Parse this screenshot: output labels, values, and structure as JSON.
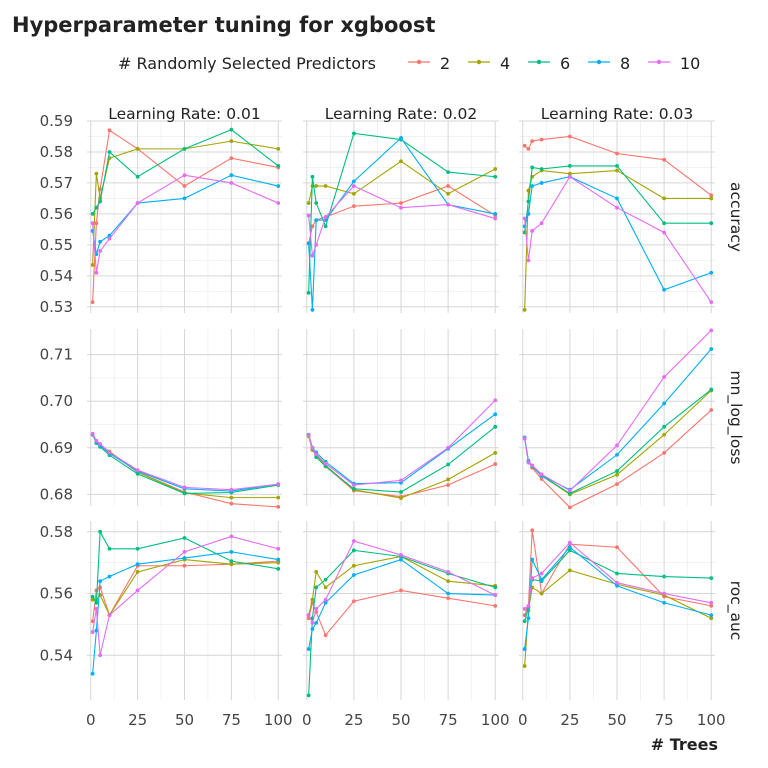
{
  "chart_data": {
    "type": "line",
    "title": "Hyperparameter tuning for xgboost",
    "xlabel": "# Trees",
    "legend": {
      "title": "# Randomly Selected Predictors",
      "entries": [
        "2",
        "4",
        "6",
        "8",
        "10"
      ],
      "position": "top"
    },
    "colors": {
      "2": "#F8766D",
      "4": "#A3A500",
      "6": "#00BF7D",
      "8": "#00B0F6",
      "10": "#E76BF3"
    },
    "x": [
      1,
      3,
      5,
      10,
      25,
      50,
      75,
      100
    ],
    "xlim": [
      -2,
      102
    ],
    "xticks": [
      0,
      25,
      50,
      75,
      100
    ],
    "columns": [
      "Learning Rate: 0.01",
      "Learning Rate: 0.02",
      "Learning Rate: 0.03"
    ],
    "rows": [
      {
        "label": "accuracy",
        "ylim": [
          0.528,
          0.59
        ],
        "yticks": [
          0.53,
          0.54,
          0.55,
          0.56,
          0.57,
          0.58,
          0.59
        ],
        "ytick_labels": [
          "0.53",
          "0.54",
          "0.55",
          "0.56",
          "0.57",
          "0.58",
          "0.59"
        ]
      },
      {
        "label": "mn_log_loss",
        "ylim": [
          0.6775,
          0.7155
        ],
        "yticks": [
          0.68,
          0.69,
          0.7,
          0.71
        ],
        "ytick_labels": [
          "0.68",
          "0.69",
          "0.70",
          "0.71"
        ]
      },
      {
        "label": "roc_auc",
        "ylim": [
          0.5255,
          0.5835
        ],
        "yticks": [
          0.54,
          0.56,
          0.58
        ],
        "ytick_labels": [
          "0.54",
          "0.56",
          "0.58"
        ]
      }
    ],
    "grid": true,
    "panels": [
      {
        "row": "accuracy",
        "col": "Learning Rate: 0.01",
        "series": [
          {
            "name": "2",
            "values": [
              0.5315,
              0.557,
              0.568,
              0.587,
              0.581,
              0.569,
              0.578,
              0.575
            ]
          },
          {
            "name": "4",
            "values": [
              0.5435,
              0.573,
              0.565,
              0.578,
              0.581,
              0.581,
              0.5835,
              0.581
            ]
          },
          {
            "name": "6",
            "values": [
              0.56,
              0.562,
              0.564,
              0.58,
              0.572,
              0.581,
              0.5872,
              0.5755
            ]
          },
          {
            "name": "8",
            "values": [
              0.5545,
              0.547,
              0.551,
              0.553,
              0.5635,
              0.565,
              0.5725,
              0.569
            ]
          },
          {
            "name": "10",
            "values": [
              0.557,
              0.541,
              0.548,
              0.552,
              0.5635,
              0.5725,
              0.57,
              0.5635
            ]
          }
        ]
      },
      {
        "row": "accuracy",
        "col": "Learning Rate: 0.02",
        "series": [
          {
            "name": "2",
            "values": [
              0.5505,
              0.556,
              0.558,
              0.559,
              0.5625,
              0.5635,
              0.569,
              0.5595
            ]
          },
          {
            "name": "4",
            "values": [
              0.5635,
              0.569,
              0.569,
              0.569,
              0.5665,
              0.577,
              0.5665,
              0.5745
            ]
          },
          {
            "name": "6",
            "values": [
              0.5345,
              0.572,
              0.5635,
              0.556,
              0.586,
              0.584,
              0.5735,
              0.572
            ]
          },
          {
            "name": "8",
            "values": [
              0.5505,
              0.529,
              0.558,
              0.558,
              0.5705,
              0.5845,
              0.563,
              0.56
            ]
          },
          {
            "name": "10",
            "values": [
              0.5595,
              0.5465,
              0.55,
              0.559,
              0.569,
              0.562,
              0.563,
              0.5585
            ]
          }
        ]
      },
      {
        "row": "accuracy",
        "col": "Learning Rate: 0.03",
        "series": [
          {
            "name": "2",
            "values": [
              0.582,
              0.581,
              0.5835,
              0.584,
              0.585,
              0.5795,
              0.5775,
              0.566
            ]
          },
          {
            "name": "4",
            "values": [
              0.529,
              0.5675,
              0.572,
              0.574,
              0.573,
              0.574,
              0.565,
              0.565
            ]
          },
          {
            "name": "6",
            "values": [
              0.554,
              0.564,
              0.575,
              0.5745,
              0.5755,
              0.5755,
              0.557,
              0.557
            ]
          },
          {
            "name": "8",
            "values": [
              0.556,
              0.56,
              0.569,
              0.57,
              0.572,
              0.565,
              0.5355,
              0.541
            ]
          },
          {
            "name": "10",
            "values": [
              0.5585,
              0.545,
              0.5545,
              0.557,
              0.572,
              0.562,
              0.554,
              0.5315
            ]
          }
        ]
      },
      {
        "row": "mn_log_loss",
        "col": "Learning Rate: 0.01",
        "series": [
          {
            "name": "2",
            "values": [
              0.6928,
              0.6912,
              0.6905,
              0.689,
              0.6848,
              0.6805,
              0.678,
              0.6773
            ]
          },
          {
            "name": "4",
            "values": [
              0.6928,
              0.6913,
              0.6906,
              0.6892,
              0.6848,
              0.6803,
              0.6793,
              0.6793
            ]
          },
          {
            "name": "6",
            "values": [
              0.6929,
              0.691,
              0.6902,
              0.6884,
              0.6844,
              0.6802,
              0.6804,
              0.682
            ]
          },
          {
            "name": "8",
            "values": [
              0.6929,
              0.6913,
              0.6905,
              0.6888,
              0.685,
              0.6812,
              0.6807,
              0.6822
            ]
          },
          {
            "name": "10",
            "values": [
              0.693,
              0.6915,
              0.6908,
              0.689,
              0.6852,
              0.6815,
              0.681,
              0.6822
            ]
          }
        ]
      },
      {
        "row": "mn_log_loss",
        "col": "Learning Rate: 0.02",
        "series": [
          {
            "name": "2",
            "values": [
              0.6925,
              0.6895,
              0.6885,
              0.686,
              0.6808,
              0.6795,
              0.682,
              0.6865
            ]
          },
          {
            "name": "4",
            "values": [
              0.6925,
              0.6897,
              0.6885,
              0.6862,
              0.681,
              0.6792,
              0.6832,
              0.6889
            ]
          },
          {
            "name": "6",
            "values": [
              0.6928,
              0.69,
              0.688,
              0.686,
              0.6812,
              0.6805,
              0.6864,
              0.6945
            ]
          },
          {
            "name": "8",
            "values": [
              0.6928,
              0.69,
              0.689,
              0.687,
              0.6823,
              0.6825,
              0.6898,
              0.6972
            ]
          },
          {
            "name": "10",
            "values": [
              0.6927,
              0.69,
              0.6886,
              0.6866,
              0.682,
              0.683,
              0.69,
              0.7002
            ]
          }
        ]
      },
      {
        "row": "mn_log_loss",
        "col": "Learning Rate: 0.03",
        "series": [
          {
            "name": "2",
            "values": [
              0.692,
              0.687,
              0.6857,
              0.6833,
              0.6772,
              0.6822,
              0.6889,
              0.6981
            ]
          },
          {
            "name": "4",
            "values": [
              0.692,
              0.687,
              0.686,
              0.684,
              0.68,
              0.6842,
              0.6928,
              0.7023
            ]
          },
          {
            "name": "6",
            "values": [
              0.6922,
              0.6872,
              0.686,
              0.684,
              0.6802,
              0.685,
              0.6945,
              0.7025
            ]
          },
          {
            "name": "8",
            "values": [
              0.6922,
              0.687,
              0.6862,
              0.684,
              0.681,
              0.6885,
              0.6995,
              0.7112
            ]
          },
          {
            "name": "10",
            "values": [
              0.692,
              0.6868,
              0.6862,
              0.6843,
              0.6808,
              0.6905,
              0.7052,
              0.7152
            ]
          }
        ]
      },
      {
        "row": "roc_auc",
        "col": "Learning Rate: 0.01",
        "series": [
          {
            "name": "2",
            "values": [
              0.551,
              0.561,
              0.562,
              0.553,
              0.569,
              0.569,
              0.5695,
              0.5705
            ]
          },
          {
            "name": "4",
            "values": [
              0.558,
              0.558,
              0.5595,
              0.553,
              0.567,
              0.571,
              0.5695,
              0.57
            ]
          },
          {
            "name": "6",
            "values": [
              0.559,
              0.557,
              0.58,
              0.5745,
              0.5745,
              0.578,
              0.5705,
              0.568
            ]
          },
          {
            "name": "8",
            "values": [
              0.534,
              0.548,
              0.564,
              0.5655,
              0.5695,
              0.5715,
              0.5735,
              0.571
            ]
          },
          {
            "name": "10",
            "values": [
              0.5475,
              0.555,
              0.54,
              0.553,
              0.561,
              0.5735,
              0.5785,
              0.5745
            ]
          }
        ]
      },
      {
        "row": "roc_auc",
        "col": "Learning Rate: 0.02",
        "series": [
          {
            "name": "2",
            "values": [
              0.552,
              0.557,
              0.554,
              0.5465,
              0.5575,
              0.561,
              0.5585,
              0.556
            ]
          },
          {
            "name": "4",
            "values": [
              0.553,
              0.558,
              0.567,
              0.562,
              0.569,
              0.572,
              0.564,
              0.5625
            ]
          },
          {
            "name": "6",
            "values": [
              0.527,
              0.552,
              0.562,
              0.5645,
              0.574,
              0.572,
              0.5665,
              0.562
            ]
          },
          {
            "name": "8",
            "values": [
              0.542,
              0.5485,
              0.5505,
              0.557,
              0.566,
              0.571,
              0.56,
              0.5595
            ]
          },
          {
            "name": "10",
            "values": [
              0.553,
              0.5505,
              0.555,
              0.558,
              0.577,
              0.5725,
              0.567,
              0.5595
            ]
          }
        ]
      },
      {
        "row": "roc_auc",
        "col": "Learning Rate: 0.03",
        "series": [
          {
            "name": "2",
            "values": [
              0.553,
              0.556,
              0.5805,
              0.56,
              0.576,
              0.575,
              0.559,
              0.556
            ]
          },
          {
            "name": "4",
            "values": [
              0.5365,
              0.5545,
              0.562,
              0.56,
              0.5675,
              0.563,
              0.5595,
              0.552
            ]
          },
          {
            "name": "6",
            "values": [
              0.551,
              0.5555,
              0.5645,
              0.564,
              0.574,
              0.5665,
              0.5655,
              0.565
            ]
          },
          {
            "name": "8",
            "values": [
              0.542,
              0.552,
              0.571,
              0.5645,
              0.575,
              0.5625,
              0.557,
              0.553
            ]
          },
          {
            "name": "10",
            "values": [
              0.555,
              0.556,
              0.565,
              0.5665,
              0.5765,
              0.5635,
              0.56,
              0.557
            ]
          }
        ]
      }
    ]
  }
}
